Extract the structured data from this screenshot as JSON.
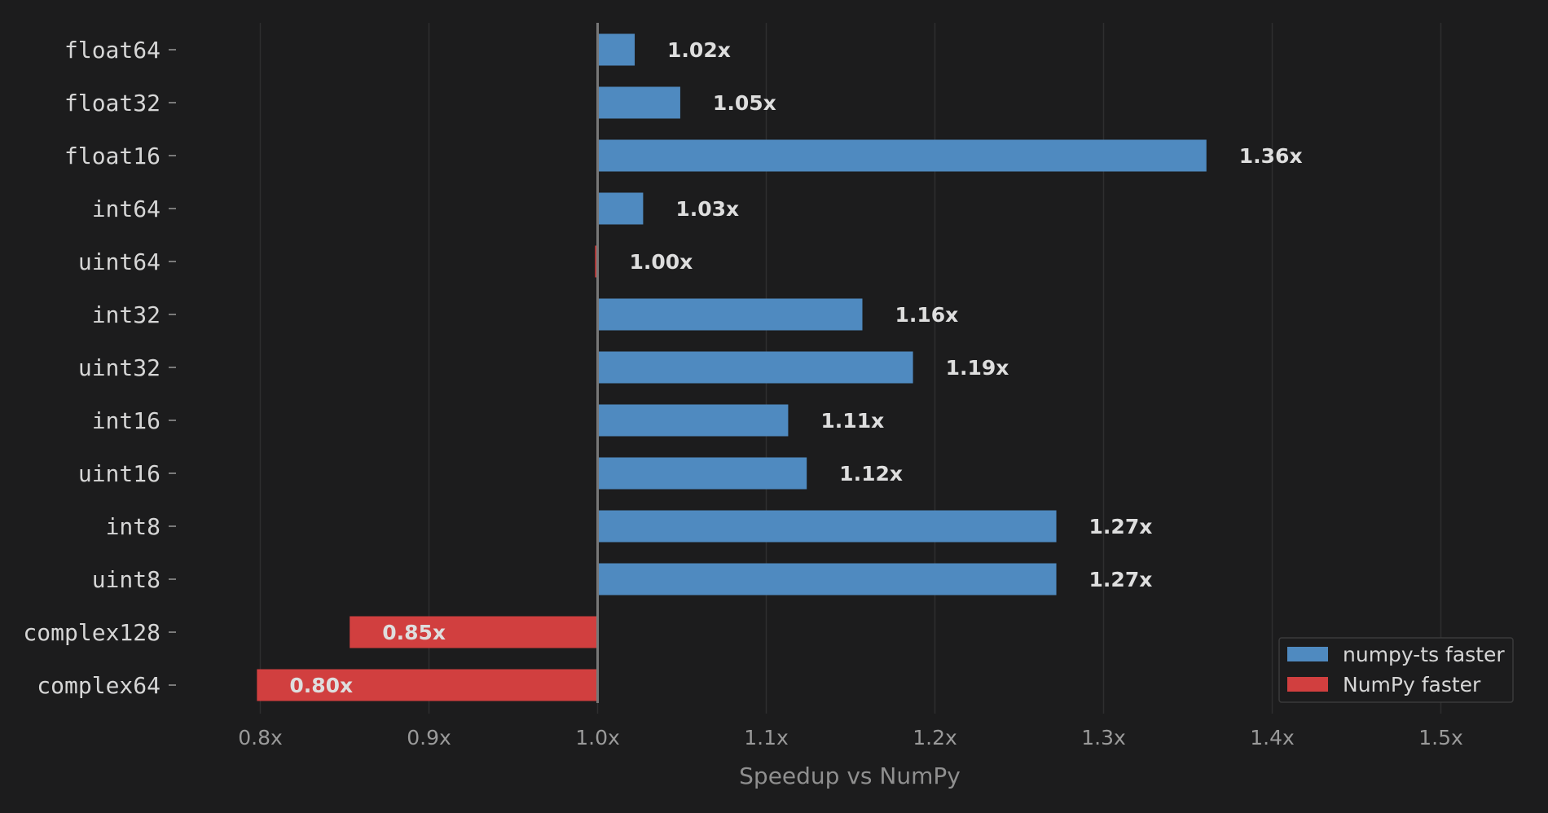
{
  "chart_data": {
    "type": "bar",
    "orientation": "horizontal",
    "categories": [
      "float64",
      "float32",
      "float16",
      "int64",
      "uint64",
      "int32",
      "uint32",
      "int16",
      "uint16",
      "int8",
      "uint8",
      "complex128",
      "complex64"
    ],
    "values": [
      1.022,
      1.049,
      1.361,
      1.027,
      0.9985,
      1.157,
      1.187,
      1.113,
      1.124,
      1.272,
      1.272,
      0.853,
      0.798
    ],
    "value_labels": [
      "1.02x",
      "1.05x",
      "1.36x",
      "1.03x",
      "1.00x",
      "1.16x",
      "1.19x",
      "1.11x",
      "1.12x",
      "1.27x",
      "1.27x",
      "0.85x",
      "0.80x"
    ],
    "baseline": 1.0,
    "xlim": [
      0.75,
      1.55
    ],
    "xticks": [
      0.8,
      0.9,
      1.0,
      1.1,
      1.2,
      1.3,
      1.4,
      1.5
    ],
    "xtick_labels": [
      "0.8x",
      "0.9x",
      "1.0x",
      "1.1x",
      "1.2x",
      "1.3x",
      "1.4x",
      "1.5x"
    ],
    "xlabel": "Speedup vs NumPy",
    "title": "",
    "grid": "vertical",
    "legend": {
      "placement": "bottom-right",
      "entries": [
        {
          "label": "numpy-ts faster",
          "color": "#4f8ac0"
        },
        {
          "label": "NumPy faster",
          "color": "#d13f3f"
        }
      ]
    },
    "colors": {
      "faster": "#4f8ac0",
      "slower": "#d13f3f",
      "background": "#1c1c1d",
      "grid": "#2e2e2f",
      "baseline": "#777777"
    }
  }
}
